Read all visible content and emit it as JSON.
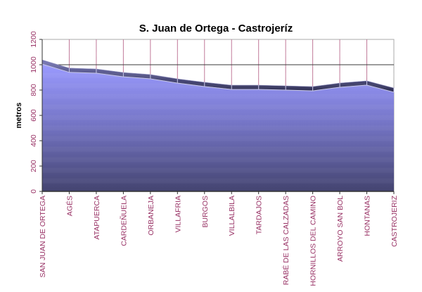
{
  "chart_data": {
    "type": "area",
    "title": "S. Juan de Ortega - Castrojeríz",
    "xlabel": "",
    "ylabel": "metros",
    "ylim": [
      0,
      1200
    ],
    "yticks": [
      "0",
      "200",
      "400",
      "600",
      "800",
      "1000",
      "1200"
    ],
    "grid": true,
    "categories": [
      "SAN JUAN DE ORTEGA",
      "AGÉS",
      "ATAPUERCA",
      "CARDEÑUELA",
      "ORBANEJA",
      "VILLAFRIA",
      "BURGOS",
      "VILLALBILA",
      "TARDAJOS",
      "RABÉ DE LAS CALZADAS",
      "HORNILLOS DEL CAMINO",
      "ARROYO SAN BOL",
      "HONTANAS",
      "CASTROJERIZ"
    ],
    "series": [
      {
        "name": "metros",
        "values": [
          1005,
          940,
          933,
          905,
          889,
          855,
          828,
          805,
          805,
          800,
          794,
          822,
          839,
          783
        ]
      }
    ],
    "colors": {
      "label": "#993366",
      "area_top": "#9999ff",
      "area_bottom": "#444470",
      "ribbon": "#3a3a68",
      "vgrid": "#c07898",
      "hgrid": "#333333"
    }
  }
}
